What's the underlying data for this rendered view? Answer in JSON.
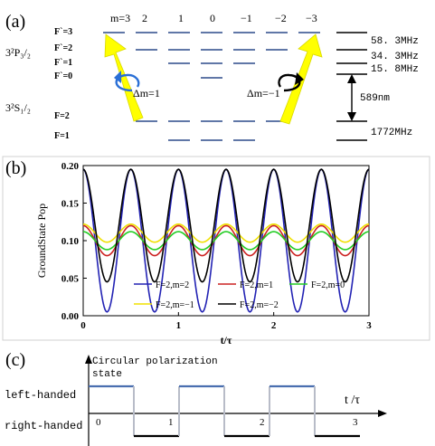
{
  "panel_a": {
    "label": "(a)",
    "m_labels": [
      "m=3",
      "2",
      "1",
      "0",
      "−1",
      "−2",
      "−3"
    ],
    "hf_levels": [
      "F`=3",
      "F`=2",
      "F`=1",
      "F`=0"
    ],
    "p_state": "3²P₃/₂",
    "s_state": "3²S₁/₂",
    "ground_levels": [
      "F=2",
      "F=1"
    ],
    "splittings": [
      "58. 3MHz",
      "34. 3MHz",
      "15. 8MHz",
      "589nm",
      "1772MHz"
    ],
    "dm_plus": "Δm=1",
    "dm_minus": "Δm=−1",
    "colors": {
      "arrow": "#ffff00",
      "arrow_edge": "#d8d800",
      "level": "#2b4a8a",
      "circ_left": "#2a6fd6"
    }
  },
  "panel_b": {
    "label": "(b)",
    "chart_data": {
      "type": "line",
      "xlabel": "t/τ",
      "ylabel": "GroundState Pop",
      "xlim": [
        0,
        3
      ],
      "ylim": [
        0,
        0.2
      ],
      "x_ticks": [
        "0",
        "1",
        "2",
        "3"
      ],
      "y_ticks": [
        "0.00",
        "0.05",
        "0.10",
        "0.15",
        "0.20"
      ],
      "series": [
        {
          "name": "F=2,m=2",
          "color": "#2323b4",
          "mean": 0.1,
          "amp": 0.095,
          "phase": 0
        },
        {
          "name": "F=2,m=1",
          "color": "#cc2222",
          "mean": 0.1,
          "amp": 0.02,
          "phase": 0
        },
        {
          "name": "F=2,m=0",
          "color": "#22cc22",
          "mean": 0.1,
          "amp": 0.012,
          "phase": 0.5
        },
        {
          "name": "F=2,m=−1",
          "color": "#f0e000",
          "mean": 0.11,
          "amp": 0.012,
          "phase": 0.5
        },
        {
          "name": "F=2,m=−2",
          "color": "#000000",
          "mean": 0.12,
          "amp": 0.075,
          "phase": 0.5
        }
      ]
    }
  },
  "panel_c": {
    "label": "(c)",
    "title_line1": "Circular polarization",
    "title_line2": "state",
    "left_label": "left-handed",
    "right_label": "right-handed",
    "axis_label": "t /τ",
    "ticks": [
      "0",
      "1",
      "2",
      "3"
    ],
    "colors": {
      "high": "#4a6fb0",
      "low": "#000000",
      "edge": "#b8bcc8"
    }
  }
}
